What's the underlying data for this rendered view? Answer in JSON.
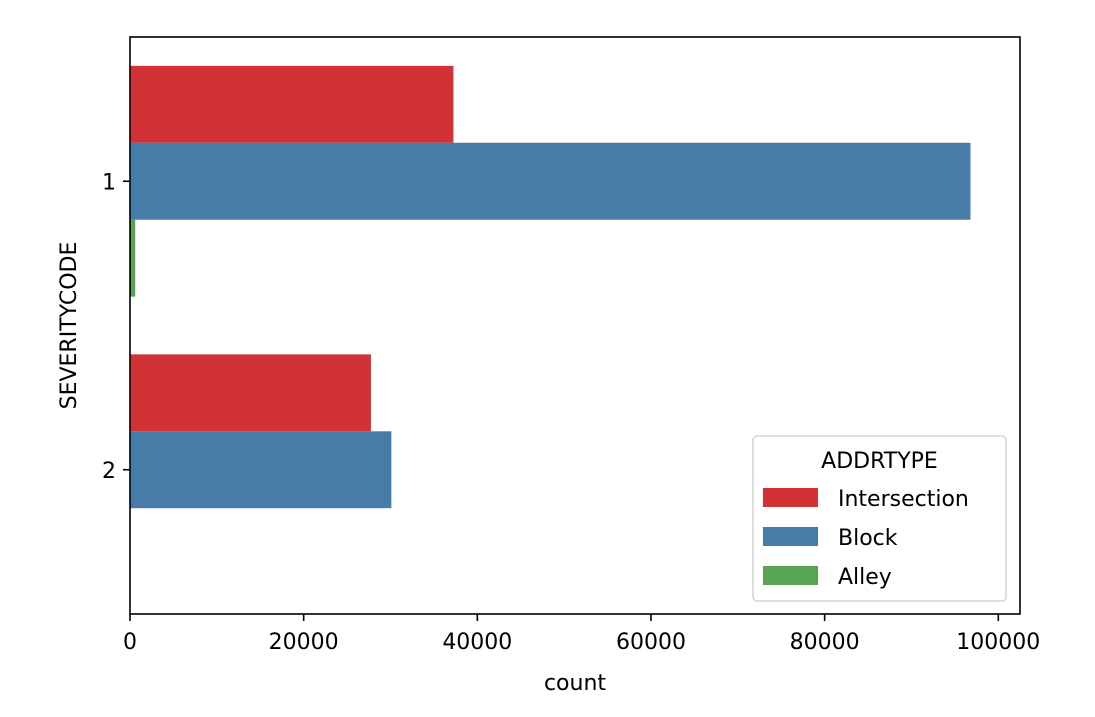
{
  "chart_data": {
    "type": "bar",
    "orientation": "horizontal",
    "categories": [
      "1",
      "2"
    ],
    "series": [
      {
        "name": "Intersection",
        "color": "#d03236",
        "values": [
          37250,
          27750
        ]
      },
      {
        "name": "Block",
        "color": "#477ca8",
        "values": [
          96800,
          30100
        ]
      },
      {
        "name": "Alley",
        "color": "#5aa356",
        "values": [
          600,
          0
        ]
      }
    ],
    "xlabel": "count",
    "ylabel": "SEVERITYCODE",
    "xlim": [
      0,
      102500
    ],
    "xticks": [
      0,
      20000,
      40000,
      60000,
      80000,
      100000
    ],
    "grid": false,
    "legend": {
      "title": "ADDRTYPE",
      "placement": "lower-right"
    }
  }
}
